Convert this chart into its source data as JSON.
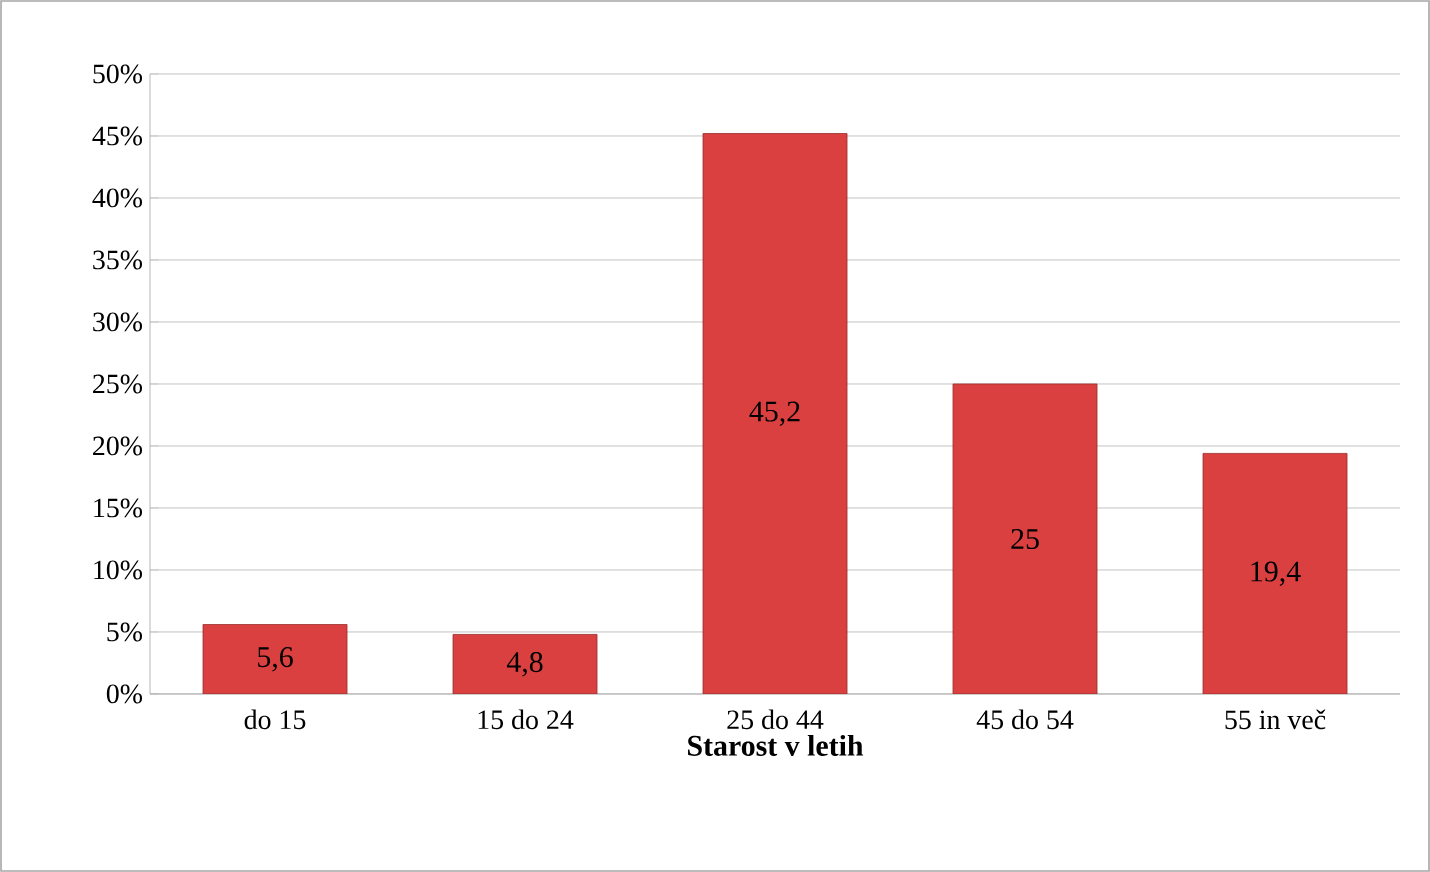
{
  "chart_data": {
    "type": "bar",
    "xlabel": "Starost v letih",
    "categories": [
      "do 15",
      "15 do 24",
      "25 do 44",
      "45 do 54",
      "55 in več"
    ],
    "values": [
      5.6,
      4.8,
      45.2,
      25,
      19.4
    ],
    "value_labels": [
      "5,6",
      "4,8",
      "45,2",
      "25",
      "19,4"
    ],
    "color": "#d9403f",
    "ylim": [
      0,
      50
    ],
    "yticks": [
      {
        "value": 0,
        "label": "0%"
      },
      {
        "value": 5,
        "label": "5%"
      },
      {
        "value": 10,
        "label": "10%"
      },
      {
        "value": 15,
        "label": "15%"
      },
      {
        "value": 20,
        "label": "20%"
      },
      {
        "value": 25,
        "label": "25%"
      },
      {
        "value": 30,
        "label": "30%"
      },
      {
        "value": 35,
        "label": "35%"
      },
      {
        "value": 40,
        "label": "40%"
      },
      {
        "value": 45,
        "label": "45%"
      },
      {
        "value": 50,
        "label": "50%"
      }
    ],
    "grid": "y"
  }
}
